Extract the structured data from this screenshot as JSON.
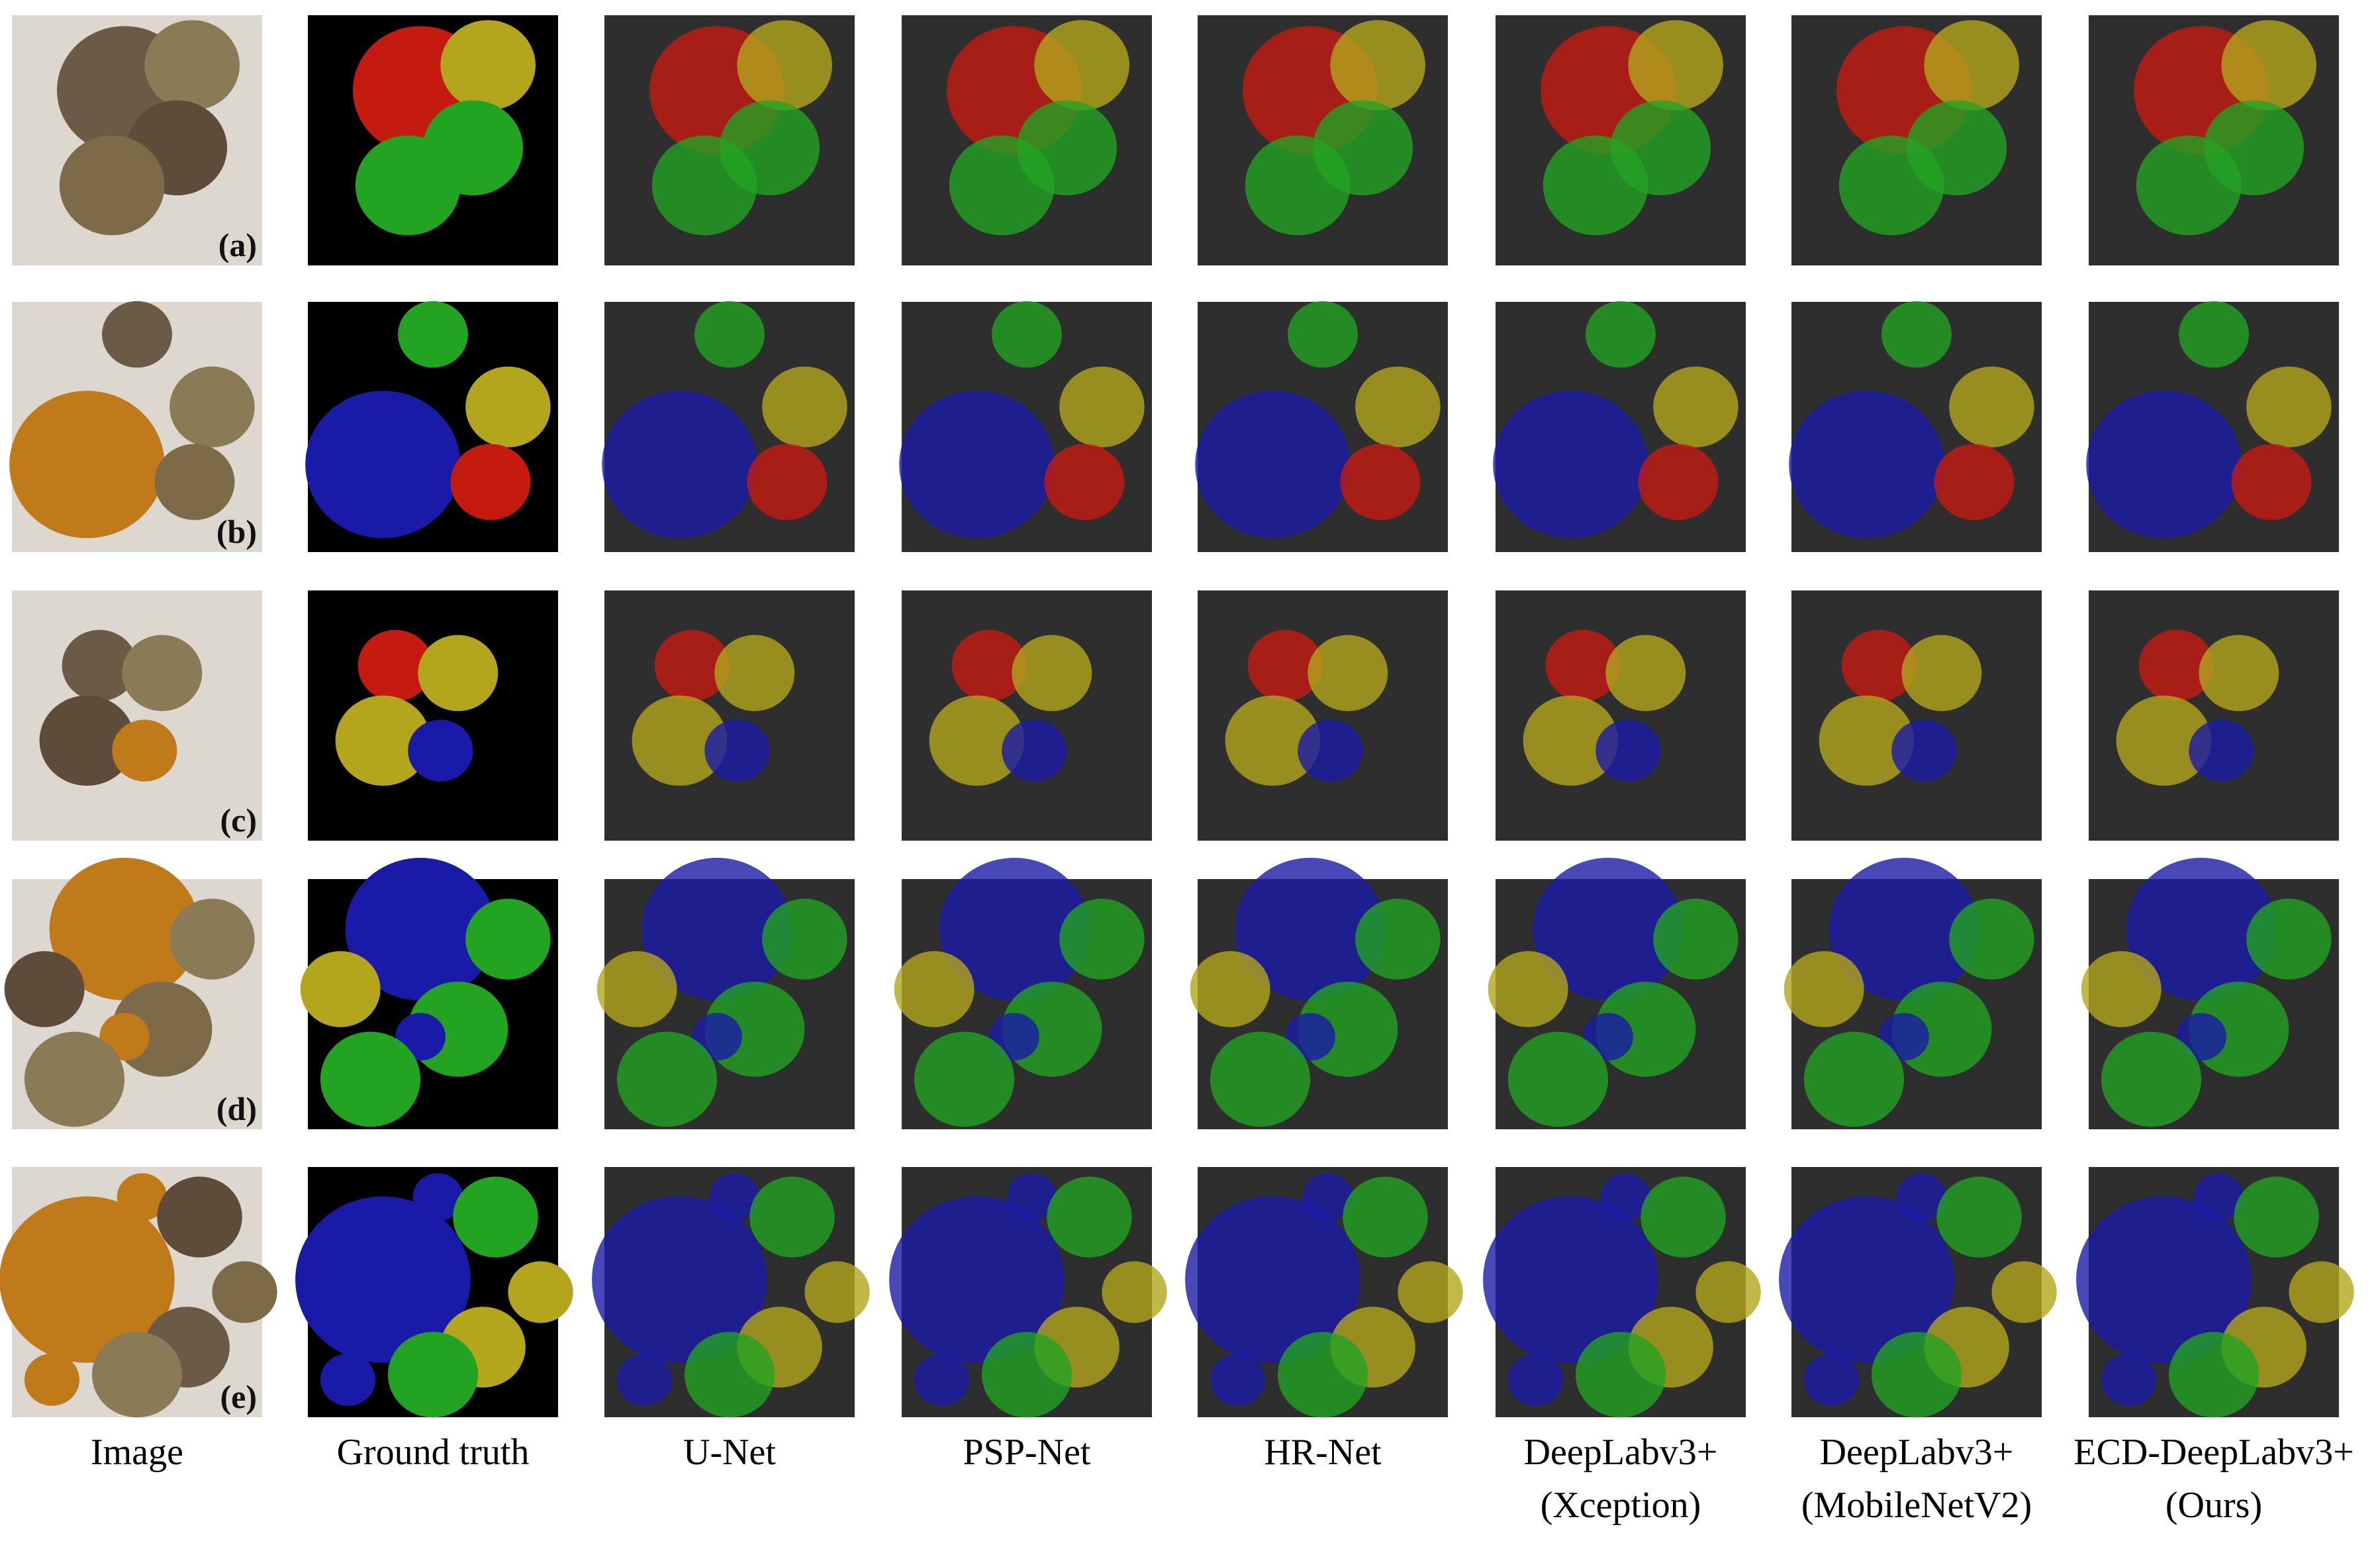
{
  "columns": [
    {
      "label": "Image"
    },
    {
      "label": "Ground truth"
    },
    {
      "label": "U-Net"
    },
    {
      "label": "PSP-Net"
    },
    {
      "label": "HR-Net"
    },
    {
      "label": "DeepLabv3+",
      "sublabel": "(Xception)"
    },
    {
      "label": "DeepLabv3+",
      "sublabel": "(MobileNetV2)"
    },
    {
      "label": "ECD-DeepLabv3+",
      "sublabel": "(Ours)"
    }
  ],
  "rows": [
    {
      "label": "(a)"
    },
    {
      "label": "(b)"
    },
    {
      "label": "(c)"
    },
    {
      "label": "(d)"
    },
    {
      "label": "(e)"
    }
  ]
}
